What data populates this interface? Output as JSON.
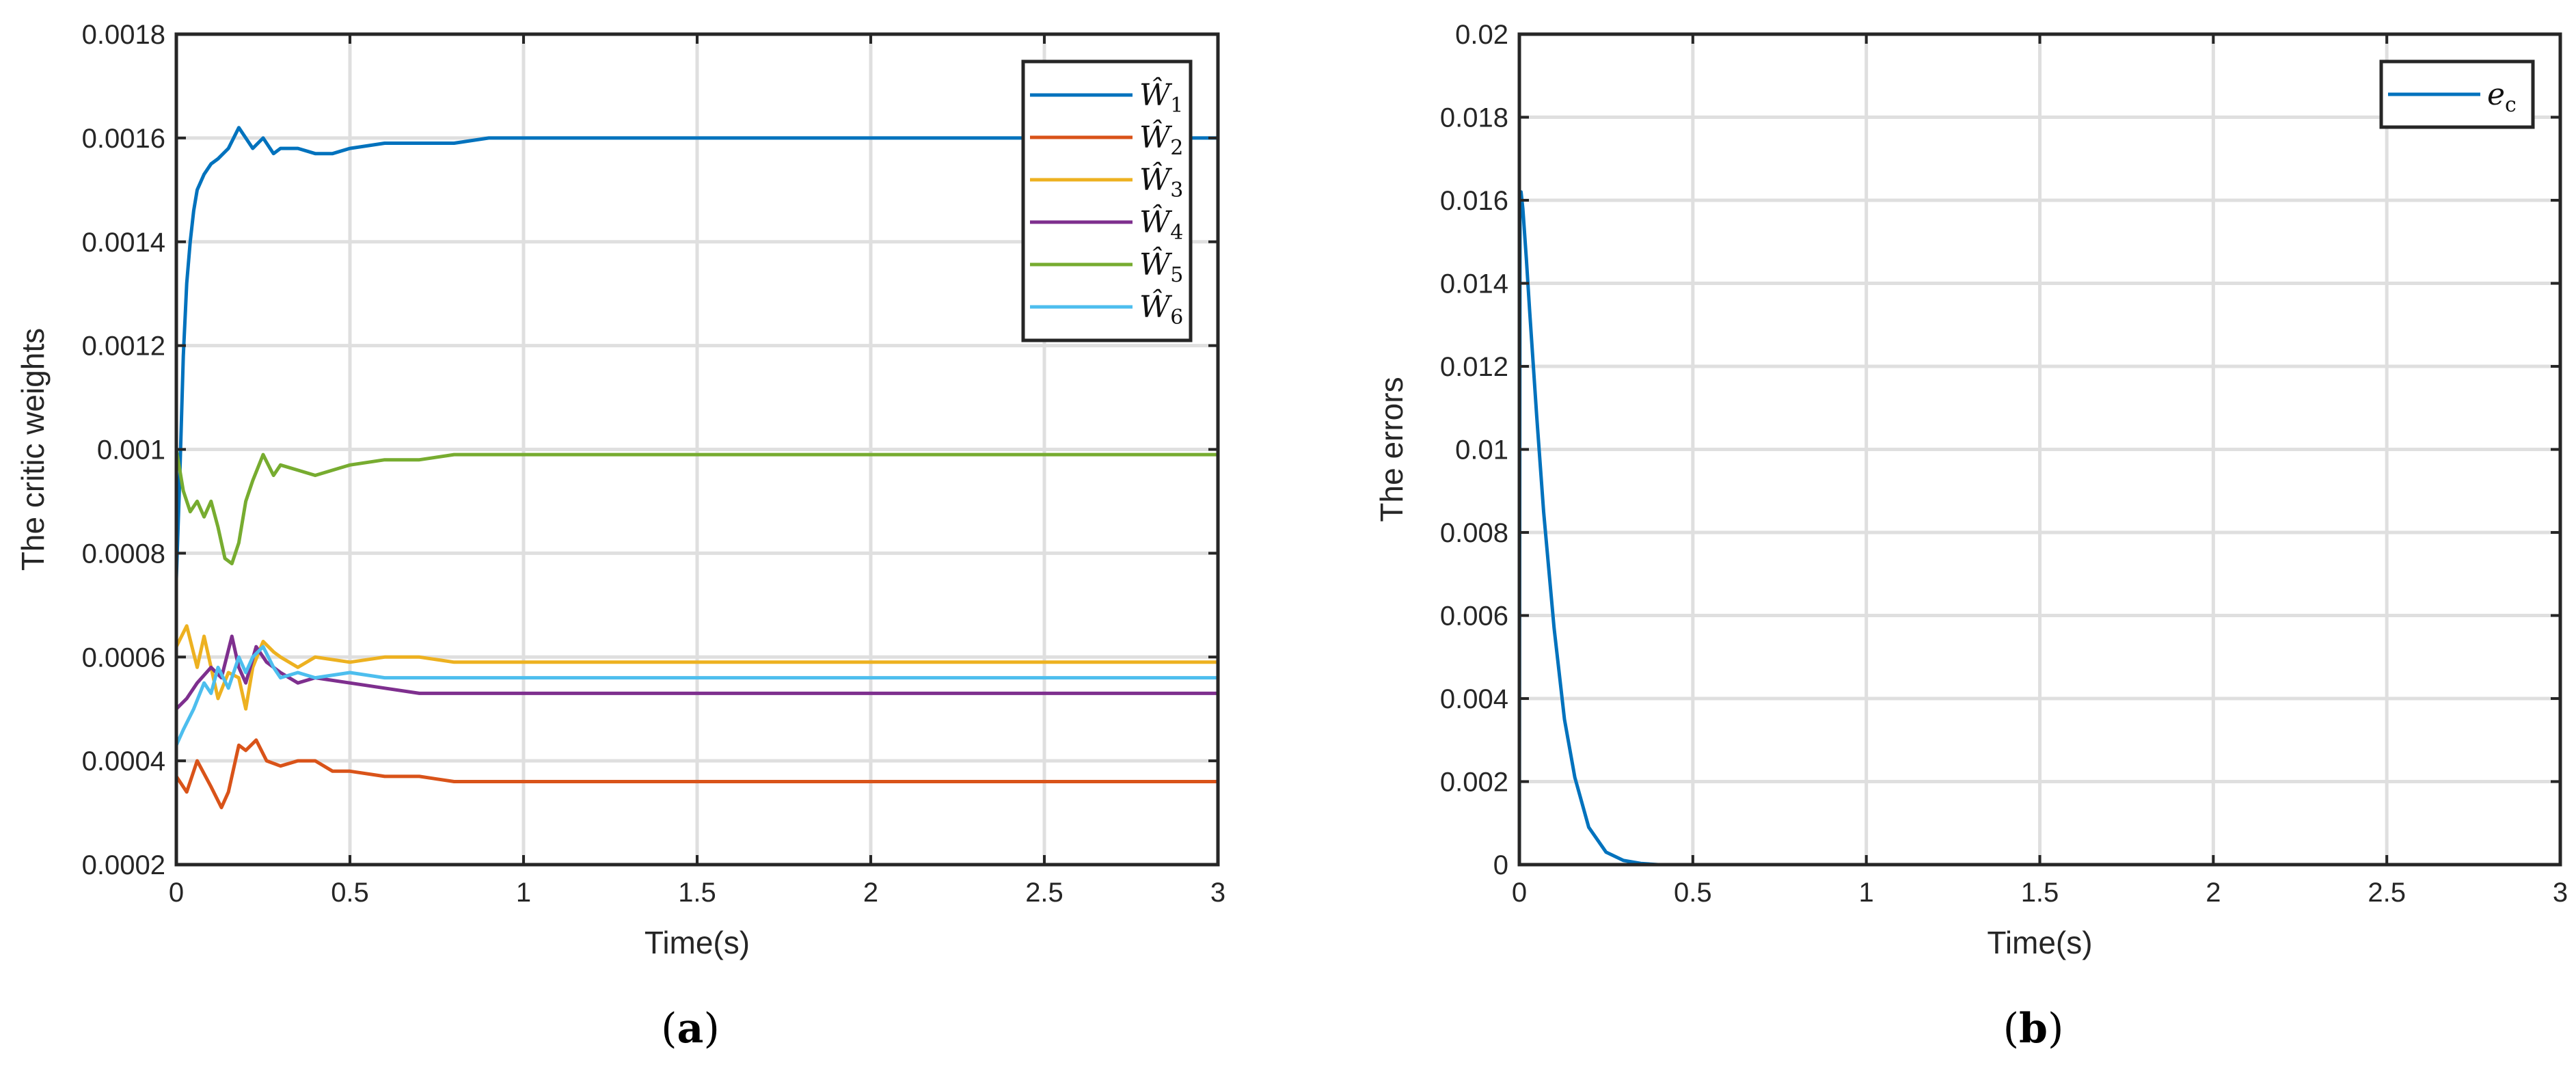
{
  "chart_data": [
    {
      "type": "line",
      "panel": "a",
      "caption_paren_open": "(",
      "caption_letter": "a",
      "caption_paren_close": ")",
      "title": "",
      "xlabel": "Time(s)",
      "ylabel": "The critic weights",
      "xlim": [
        0,
        3
      ],
      "ylim": [
        0.0002,
        0.0018
      ],
      "xticks": [
        0,
        0.5,
        1,
        1.5,
        2,
        2.5,
        3
      ],
      "xtick_labels": [
        "0",
        "0.5",
        "1",
        "1.5",
        "2",
        "2.5",
        "3"
      ],
      "yticks": [
        0.0002,
        0.0004,
        0.0006,
        0.0008,
        0.001,
        0.0012,
        0.0014,
        0.0016,
        0.0018
      ],
      "ytick_labels": [
        "0.0002",
        "0.0004",
        "0.0006",
        "0.0008",
        "0.001",
        "0.0012",
        "0.0014",
        "0.0016",
        "0.0018"
      ],
      "grid": true,
      "legend_position": "top-right",
      "series": [
        {
          "name": "Ŵ",
          "sub": "1",
          "color": "#0072BD",
          "x": [
            0,
            0.01,
            0.02,
            0.03,
            0.04,
            0.05,
            0.06,
            0.08,
            0.1,
            0.12,
            0.15,
            0.18,
            0.2,
            0.22,
            0.25,
            0.28,
            0.3,
            0.35,
            0.4,
            0.45,
            0.5,
            0.6,
            0.7,
            0.8,
            0.9,
            1,
            1.2,
            1.5,
            2,
            2.5,
            3
          ],
          "y": [
            0.00075,
            0.00095,
            0.00118,
            0.00132,
            0.0014,
            0.00146,
            0.0015,
            0.00153,
            0.00155,
            0.00156,
            0.00158,
            0.00162,
            0.0016,
            0.00158,
            0.0016,
            0.00157,
            0.00158,
            0.00158,
            0.00157,
            0.00157,
            0.00158,
            0.00159,
            0.00159,
            0.00159,
            0.0016,
            0.0016,
            0.0016,
            0.0016,
            0.0016,
            0.0016,
            0.0016
          ]
        },
        {
          "name": "Ŵ",
          "sub": "2",
          "color": "#D95319",
          "x": [
            0,
            0.03,
            0.06,
            0.1,
            0.13,
            0.15,
            0.18,
            0.2,
            0.23,
            0.26,
            0.3,
            0.35,
            0.4,
            0.45,
            0.5,
            0.6,
            0.7,
            0.8,
            0.9,
            1,
            1.2,
            1.5,
            2,
            2.5,
            3
          ],
          "y": [
            0.00037,
            0.00034,
            0.0004,
            0.00035,
            0.00031,
            0.00034,
            0.00043,
            0.00042,
            0.00044,
            0.0004,
            0.00039,
            0.0004,
            0.0004,
            0.00038,
            0.00038,
            0.00037,
            0.00037,
            0.00036,
            0.00036,
            0.00036,
            0.00036,
            0.00036,
            0.00036,
            0.00036,
            0.00036
          ]
        },
        {
          "name": "Ŵ",
          "sub": "3",
          "color": "#EDB120",
          "x": [
            0,
            0.03,
            0.06,
            0.08,
            0.1,
            0.12,
            0.15,
            0.18,
            0.2,
            0.22,
            0.25,
            0.28,
            0.3,
            0.35,
            0.4,
            0.5,
            0.6,
            0.7,
            0.8,
            1,
            1.5,
            2,
            2.5,
            3
          ],
          "y": [
            0.00062,
            0.00066,
            0.00058,
            0.00064,
            0.00058,
            0.00052,
            0.00057,
            0.00056,
            0.0005,
            0.00058,
            0.00063,
            0.00061,
            0.0006,
            0.00058,
            0.0006,
            0.00059,
            0.0006,
            0.0006,
            0.00059,
            0.00059,
            0.00059,
            0.00059,
            0.00059,
            0.00059
          ]
        },
        {
          "name": "Ŵ",
          "sub": "4",
          "color": "#7E2F8E",
          "x": [
            0,
            0.03,
            0.06,
            0.1,
            0.13,
            0.16,
            0.18,
            0.2,
            0.23,
            0.26,
            0.3,
            0.35,
            0.4,
            0.5,
            0.6,
            0.7,
            0.8,
            1,
            1.5,
            2,
            2.5,
            3
          ],
          "y": [
            0.0005,
            0.00052,
            0.00055,
            0.00058,
            0.00056,
            0.00064,
            0.00058,
            0.00055,
            0.00062,
            0.00059,
            0.00057,
            0.00055,
            0.00056,
            0.00055,
            0.00054,
            0.00053,
            0.00053,
            0.00053,
            0.00053,
            0.00053,
            0.00053,
            0.00053
          ]
        },
        {
          "name": "Ŵ",
          "sub": "5",
          "color": "#77AC30",
          "x": [
            0,
            0.02,
            0.04,
            0.06,
            0.08,
            0.1,
            0.12,
            0.14,
            0.16,
            0.18,
            0.2,
            0.22,
            0.25,
            0.28,
            0.3,
            0.35,
            0.4,
            0.45,
            0.5,
            0.6,
            0.7,
            0.8,
            0.9,
            1,
            1.2,
            1.5,
            2,
            2.5,
            3
          ],
          "y": [
            0.001,
            0.00092,
            0.00088,
            0.0009,
            0.00087,
            0.0009,
            0.00085,
            0.00079,
            0.00078,
            0.00082,
            0.0009,
            0.00094,
            0.00099,
            0.00095,
            0.00097,
            0.00096,
            0.00095,
            0.00096,
            0.00097,
            0.00098,
            0.00098,
            0.00099,
            0.00099,
            0.00099,
            0.00099,
            0.00099,
            0.00099,
            0.00099,
            0.00099
          ]
        },
        {
          "name": "Ŵ",
          "sub": "6",
          "color": "#4DBEEE",
          "x": [
            0,
            0.02,
            0.05,
            0.08,
            0.1,
            0.12,
            0.15,
            0.18,
            0.2,
            0.22,
            0.25,
            0.28,
            0.3,
            0.35,
            0.4,
            0.5,
            0.6,
            0.7,
            0.8,
            1,
            1.5,
            2,
            2.5,
            3
          ],
          "y": [
            0.00043,
            0.00046,
            0.0005,
            0.00055,
            0.00053,
            0.00058,
            0.00054,
            0.0006,
            0.00057,
            0.0006,
            0.00062,
            0.00058,
            0.00056,
            0.00057,
            0.00056,
            0.00057,
            0.00056,
            0.00056,
            0.00056,
            0.00056,
            0.00056,
            0.00056,
            0.00056,
            0.00056
          ]
        }
      ]
    },
    {
      "type": "line",
      "panel": "b",
      "caption_paren_open": "(",
      "caption_letter": "b",
      "caption_paren_close": ")",
      "title": "",
      "xlabel": "Time(s)",
      "ylabel": "The errors",
      "xlim": [
        0,
        3
      ],
      "ylim": [
        0,
        0.02
      ],
      "xticks": [
        0,
        0.5,
        1,
        1.5,
        2,
        2.5,
        3
      ],
      "xtick_labels": [
        "0",
        "0.5",
        "1",
        "1.5",
        "2",
        "2.5",
        "3"
      ],
      "yticks": [
        0,
        0.002,
        0.004,
        0.006,
        0.008,
        0.01,
        0.012,
        0.014,
        0.016,
        0.018,
        0.02
      ],
      "ytick_labels": [
        "0",
        "0.002",
        "0.004",
        "0.006",
        "0.008",
        "0.01",
        "0.012",
        "0.014",
        "0.016",
        "0.018",
        "0.02"
      ],
      "grid": true,
      "legend_position": "top-right",
      "series": [
        {
          "name": "e",
          "sub": "c",
          "color": "#0072BD",
          "x": [
            0,
            0.002,
            0.005,
            0.01,
            0.02,
            0.03,
            0.05,
            0.07,
            0.1,
            0.13,
            0.16,
            0.2,
            0.25,
            0.3,
            0.35,
            0.4,
            0.5,
            1,
            1.5,
            2,
            2.5,
            3
          ],
          "y": [
            0,
            0.0162,
            0.0162,
            0.0158,
            0.0146,
            0.0133,
            0.0108,
            0.0085,
            0.0057,
            0.0035,
            0.0021,
            0.0009,
            0.0003,
            0.0001,
            3e-05,
            0,
            0,
            0,
            0,
            0,
            0,
            0
          ]
        }
      ]
    }
  ]
}
